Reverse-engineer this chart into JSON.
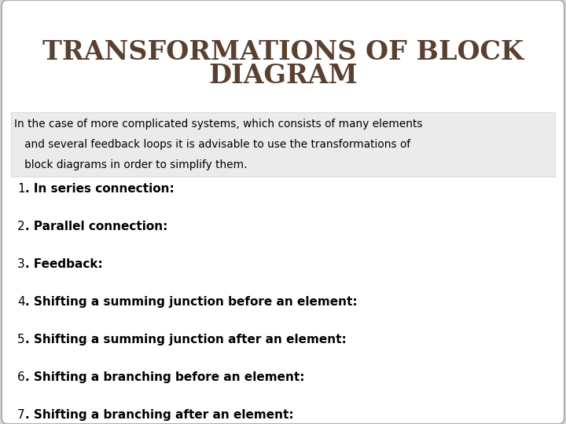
{
  "title_line1": "TRANSFORMATIONS OF BLOCK",
  "title_line2": "DIAGRAM",
  "title_color": "#5a4030",
  "bg_color": "#ffffff",
  "outer_bg": "#d8d8d8",
  "intro_text_lines": [
    "In the case of more complicated systems, which consists of many elements",
    "   and several feedback loops it is advisable to use the transformations of",
    "   block diagrams in order to simplify them."
  ],
  "intro_bg": "#ebebeb",
  "items": [
    [
      "1",
      ". In series connection:"
    ],
    [
      "2",
      ". Parallel connection:"
    ],
    [
      "3",
      ". Feedback:"
    ],
    [
      "4",
      ". Shifting a summing junction before an element:"
    ],
    [
      "5",
      ". Shifting a summing junction after an element:"
    ],
    [
      "6",
      ". Shifting a branching before an element:"
    ],
    [
      "7",
      ". Shifting a branching after an element:"
    ]
  ]
}
